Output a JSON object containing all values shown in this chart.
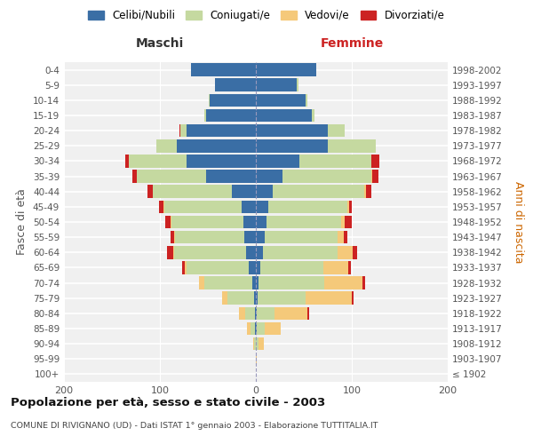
{
  "age_groups": [
    "100+",
    "95-99",
    "90-94",
    "85-89",
    "80-84",
    "75-79",
    "70-74",
    "65-69",
    "60-64",
    "55-59",
    "50-54",
    "45-49",
    "40-44",
    "35-39",
    "30-34",
    "25-29",
    "20-24",
    "15-19",
    "10-14",
    "5-9",
    "0-4"
  ],
  "birth_years": [
    "≤ 1902",
    "1903-1907",
    "1908-1912",
    "1913-1917",
    "1918-1922",
    "1923-1927",
    "1928-1932",
    "1933-1937",
    "1938-1942",
    "1943-1947",
    "1948-1952",
    "1953-1957",
    "1958-1962",
    "1963-1967",
    "1968-1972",
    "1973-1977",
    "1978-1982",
    "1983-1987",
    "1988-1992",
    "1993-1997",
    "1998-2002"
  ],
  "colors": {
    "celibe": "#3a6ea5",
    "coniugato": "#c5d9a0",
    "vedovo": "#f5c97a",
    "divorziato": "#cc2222"
  },
  "maschi": {
    "celibe": [
      0,
      0,
      0,
      1,
      1,
      2,
      4,
      7,
      10,
      12,
      13,
      15,
      25,
      52,
      72,
      82,
      72,
      52,
      48,
      43,
      68
    ],
    "coniugato": [
      0,
      0,
      2,
      5,
      10,
      28,
      50,
      65,
      75,
      72,
      75,
      80,
      82,
      72,
      60,
      22,
      7,
      2,
      1,
      0,
      0
    ],
    "vedovo": [
      0,
      0,
      1,
      3,
      7,
      5,
      5,
      2,
      1,
      1,
      1,
      1,
      0,
      0,
      0,
      0,
      0,
      0,
      0,
      0,
      0
    ],
    "divorziato": [
      0,
      0,
      0,
      0,
      0,
      0,
      0,
      3,
      7,
      4,
      5,
      5,
      6,
      5,
      4,
      0,
      1,
      0,
      0,
      0,
      0
    ]
  },
  "femmine": {
    "nubile": [
      0,
      0,
      0,
      1,
      1,
      2,
      3,
      5,
      7,
      9,
      11,
      13,
      18,
      28,
      45,
      75,
      75,
      58,
      52,
      43,
      63
    ],
    "coniugata": [
      0,
      0,
      3,
      8,
      18,
      50,
      68,
      65,
      78,
      76,
      78,
      82,
      95,
      92,
      75,
      50,
      18,
      3,
      2,
      1,
      0
    ],
    "vedova": [
      0,
      1,
      5,
      17,
      35,
      48,
      40,
      26,
      16,
      7,
      4,
      2,
      2,
      1,
      0,
      0,
      0,
      0,
      0,
      0,
      0
    ],
    "divorziata": [
      0,
      0,
      0,
      0,
      2,
      2,
      3,
      3,
      5,
      3,
      7,
      3,
      5,
      7,
      9,
      0,
      0,
      0,
      0,
      0,
      0
    ]
  },
  "title": "Popolazione per età, sesso e stato civile - 2003",
  "subtitle": "COMUNE DI RIVIGNANO (UD) - Dati ISTAT 1° gennaio 2003 - Elaborazione TUTTITALIA.IT",
  "xlabel_left": "Maschi",
  "xlabel_right": "Femmine",
  "ylabel_left": "Fasce di età",
  "ylabel_right": "Anni di nascita",
  "xlim": 200,
  "legend_labels": [
    "Celibi/Nubili",
    "Coniugati/e",
    "Vedovi/e",
    "Divorziati/e"
  ]
}
